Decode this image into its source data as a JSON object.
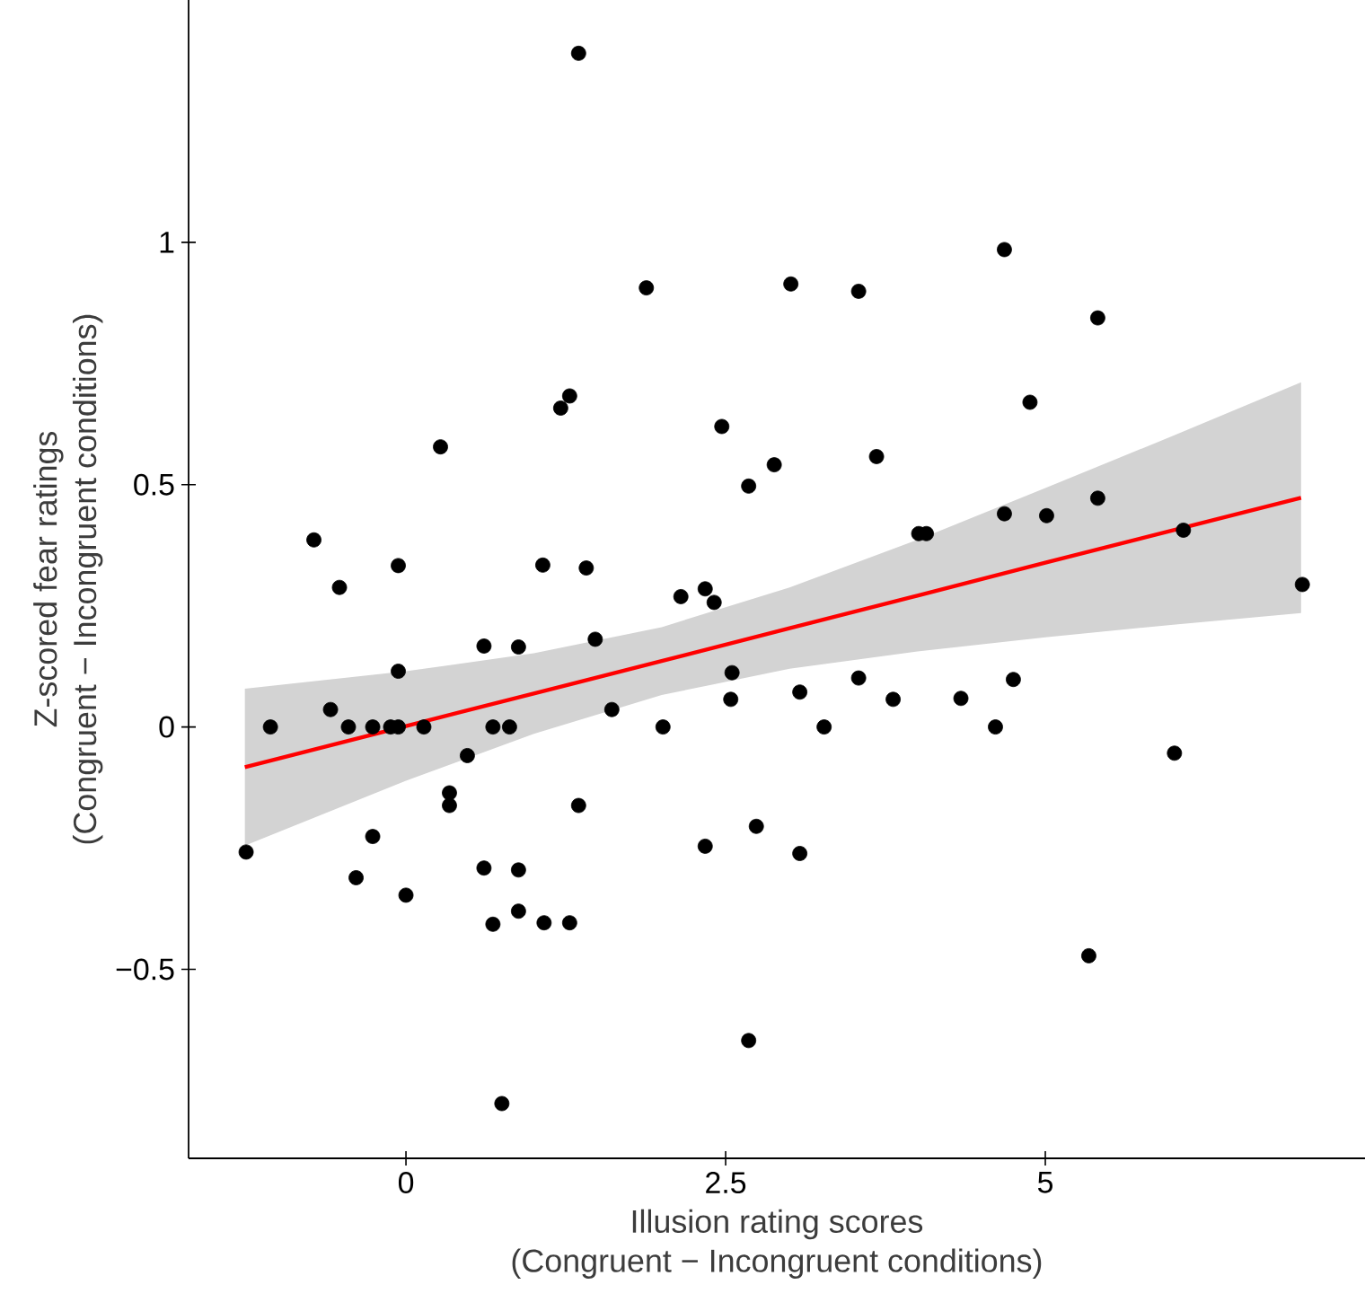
{
  "chart_data": {
    "type": "scatter",
    "xlabel": "Illusion rating scores\n(Congruent − Incongruent conditions)",
    "ylabel": "Z-scored fear ratings\n(Congruent − Incongruent conditions)",
    "xlim": [
      -1.7,
      7.5
    ],
    "ylim": [
      -0.89,
      1.5
    ],
    "xticks": [
      0,
      2.5,
      5
    ],
    "yticks": [
      {
        "value": -0.5,
        "label": "−0.5"
      },
      0,
      0.5,
      1
    ],
    "grid": false,
    "series": [
      {
        "color": "#000000",
        "marker": "circle",
        "x": [
          1.35,
          1.88,
          1.28,
          1.21,
          0.27,
          2.47,
          2.68,
          -0.72,
          -0.06,
          1.07,
          1.41,
          -0.52,
          2.15,
          2.34,
          2.41,
          2.88,
          4.68,
          3.01,
          3.54,
          5.41,
          4.88,
          3.68,
          4.68,
          5.01,
          5.41,
          4.01,
          4.07,
          6.08,
          7.01,
          0.61,
          0.88,
          1.48,
          -0.06,
          2.55,
          2.54,
          -0.59,
          1.61,
          -1.06,
          -0.45,
          -0.26,
          -0.12,
          -0.06,
          0.14,
          0.68,
          0.81,
          2.01,
          0.48,
          0.34,
          0.34,
          1.35,
          -1.25,
          -0.26,
          2.34,
          2.74,
          -0.39,
          0.61,
          0.88,
          0.0,
          0.68,
          0.88,
          1.08,
          1.28,
          2.68,
          0.75,
          3.08,
          3.54,
          3.81,
          4.34,
          4.75,
          3.27,
          4.61,
          6.01,
          3.08,
          5.34
        ],
        "values": [
          1.39,
          0.906,
          0.683,
          0.658,
          0.578,
          0.62,
          0.497,
          0.386,
          0.333,
          0.334,
          0.328,
          0.288,
          0.269,
          0.285,
          0.257,
          0.541,
          0.985,
          0.914,
          0.899,
          0.844,
          0.67,
          0.558,
          0.44,
          0.436,
          0.472,
          0.399,
          0.399,
          0.406,
          0.294,
          0.167,
          0.165,
          0.181,
          0.115,
          0.112,
          0.057,
          0.036,
          0.036,
          0,
          0,
          0,
          0,
          0,
          0,
          0,
          0,
          0,
          -0.059,
          -0.136,
          -0.162,
          -0.162,
          -0.258,
          -0.226,
          -0.246,
          -0.205,
          -0.311,
          -0.291,
          -0.295,
          -0.347,
          -0.407,
          -0.38,
          -0.404,
          -0.404,
          -0.647,
          -0.777,
          0.072,
          0.101,
          0.057,
          0.059,
          0.098,
          0,
          0,
          -0.054,
          -0.261,
          -0.472
        ]
      },
      {
        "type": "line",
        "color": "#ff0000",
        "marker": "none",
        "x": [
          -1.26,
          0,
          1,
          2,
          3,
          4,
          5,
          6,
          7.0
        ],
        "values": [
          -0.083,
          0.002,
          0.069,
          0.136,
          0.204,
          0.271,
          0.339,
          0.406,
          0.473
        ],
        "lower": [
          -0.245,
          -0.111,
          -0.014,
          0.066,
          0.12,
          0.156,
          0.185,
          0.211,
          0.235
        ],
        "upper": [
          0.079,
          0.115,
          0.152,
          0.206,
          0.288,
          0.386,
          0.493,
          0.601,
          0.711
        ]
      }
    ]
  }
}
